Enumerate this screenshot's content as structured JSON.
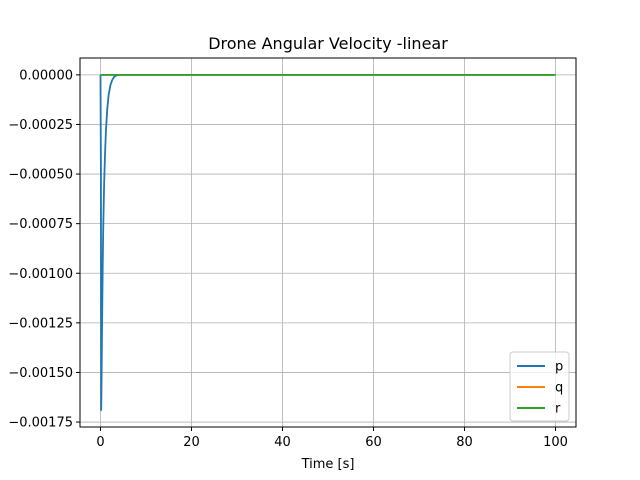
{
  "chart_data": {
    "type": "line",
    "title": "Drone Angular Velocity -linear",
    "xlabel": "Time [s]",
    "ylabel": "",
    "xlim": [
      -4.5,
      104.5
    ],
    "ylim": [
      -0.001775,
      8.5e-05
    ],
    "xticks": [
      0,
      20,
      40,
      60,
      80,
      100
    ],
    "xtick_labels": [
      "0",
      "20",
      "40",
      "60",
      "80",
      "100"
    ],
    "yticks": [
      0,
      -0.00025,
      -0.0005,
      -0.00075,
      -0.001,
      -0.00125,
      -0.0015,
      -0.00175
    ],
    "ytick_labels": [
      "0.00000",
      "−0.00025",
      "−0.00050",
      "−0.00075",
      "−0.00100",
      "−0.00125",
      "−0.00150",
      "−0.00175"
    ],
    "grid": true,
    "legend_position": "lower-right",
    "series": [
      {
        "name": "p",
        "color": "#1f77b4",
        "x": [
          0,
          0.1,
          0.15,
          0.2,
          0.3,
          0.4,
          0.5,
          0.6,
          0.8,
          1.0,
          1.2,
          1.5,
          1.8,
          2.2,
          2.6,
          3.0,
          3.5,
          4.0,
          5.0,
          10,
          100
        ],
        "y": [
          0,
          -0.0005,
          -0.00169,
          -0.00162,
          -0.00138,
          -0.00115,
          -0.00095,
          -0.00078,
          -0.00055,
          -0.0004,
          -0.00028,
          -0.00017,
          -0.0001,
          -5e-05,
          -2.5e-05,
          -1e-05,
          -3e-06,
          0,
          0,
          0,
          0
        ]
      },
      {
        "name": "q",
        "color": "#ff7f0e",
        "x": [
          0,
          100
        ],
        "y": [
          0,
          0
        ]
      },
      {
        "name": "r",
        "color": "#2ca02c",
        "x": [
          0,
          100
        ],
        "y": [
          0,
          0
        ]
      }
    ]
  }
}
